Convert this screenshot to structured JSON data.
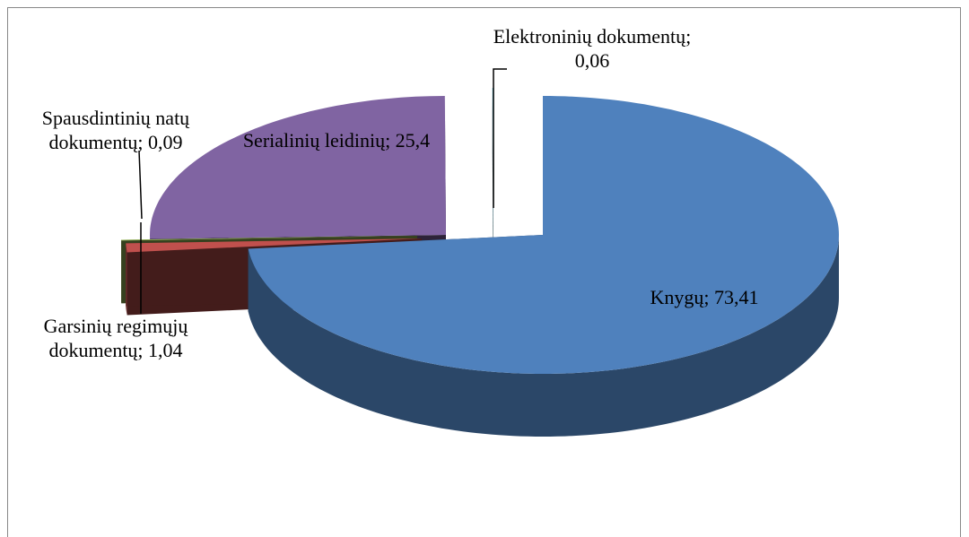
{
  "chart_data": {
    "type": "pie",
    "values": [
      73.41,
      1.04,
      0.09,
      25.4,
      0.06
    ],
    "value_labels": [
      "Knygų; 73,41",
      "Garsinių regimųjų dokumentų; 1,04",
      "Spausdintinių natų dokumentų; 0,09",
      "Serialinių leidinių; 25,4",
      "Elektroninių dokumentų; 0,06"
    ],
    "colors": [
      "#4f81bd",
      "#c0504d",
      "#9bbb59",
      "#8064a2",
      "#4bacc6"
    ]
  }
}
